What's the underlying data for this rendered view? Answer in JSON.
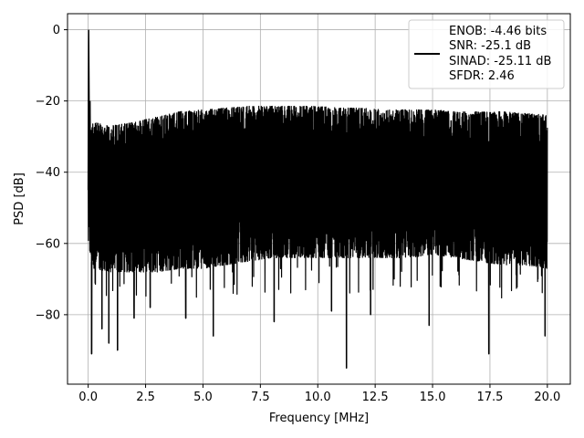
{
  "chart_data": {
    "type": "line",
    "title": "",
    "xlabel": "Frequency [MHz]",
    "ylabel": "PSD [dB]",
    "xlim": [
      -0.9,
      21.0
    ],
    "ylim": [
      -99.5,
      4.5
    ],
    "xticks": [
      0.0,
      2.5,
      5.0,
      7.5,
      10.0,
      12.5,
      15.0,
      17.5,
      20.0
    ],
    "xtick_labels": [
      "0.0",
      "2.5",
      "5.0",
      "7.5",
      "10.0",
      "12.5",
      "15.0",
      "17.5",
      "20.0"
    ],
    "yticks": [
      0,
      -20,
      -40,
      -60,
      -80
    ],
    "ytick_labels": [
      "0",
      "−20",
      "−40",
      "−60",
      "−80"
    ],
    "grid": true,
    "legend_position": "top-right",
    "series": [
      {
        "name": "",
        "color": "#000000",
        "peak": {
          "x": 0.02,
          "y": 0.0
        },
        "envelope": {
          "x": [
            0.0,
            0.2,
            1.0,
            2.0,
            3.0,
            4.0,
            5.0,
            6.0,
            7.0,
            8.0,
            9.0,
            10.0,
            11.0,
            12.0,
            13.0,
            14.0,
            15.0,
            16.0,
            17.0,
            18.0,
            19.0,
            20.0
          ],
          "upper": [
            -30,
            -26,
            -27,
            -26,
            -24.5,
            -23,
            -22.5,
            -22,
            -21.5,
            -21.5,
            -21.5,
            -21.5,
            -22,
            -22,
            -22.5,
            -22.5,
            -22.5,
            -23,
            -23,
            -23,
            -23.5,
            -24
          ],
          "lower": [
            -60,
            -67,
            -68,
            -68,
            -68,
            -67,
            -67,
            -66,
            -65,
            -64,
            -64,
            -64,
            -64,
            -64,
            -64,
            -64,
            -63,
            -64,
            -65,
            -66,
            -66,
            -67
          ]
        },
        "deep_dips": [
          {
            "x": 0.15,
            "y": -91
          },
          {
            "x": 0.6,
            "y": -84
          },
          {
            "x": 0.9,
            "y": -88
          },
          {
            "x": 1.28,
            "y": -90
          },
          {
            "x": 2.0,
            "y": -81
          },
          {
            "x": 2.7,
            "y": -78
          },
          {
            "x": 4.25,
            "y": -81
          },
          {
            "x": 5.45,
            "y": -86
          },
          {
            "x": 8.1,
            "y": -82
          },
          {
            "x": 10.6,
            "y": -79
          },
          {
            "x": 11.25,
            "y": -95
          },
          {
            "x": 12.3,
            "y": -80
          },
          {
            "x": 14.85,
            "y": -83
          },
          {
            "x": 17.45,
            "y": -91
          },
          {
            "x": 19.9,
            "y": -86
          }
        ]
      }
    ]
  },
  "legend": {
    "line1": "ENOB: -4.46 bits",
    "line2": "SNR: -25.1 dB",
    "line3": "SINAD: -25.11 dB",
    "line4": "SFDR: 2.46"
  }
}
